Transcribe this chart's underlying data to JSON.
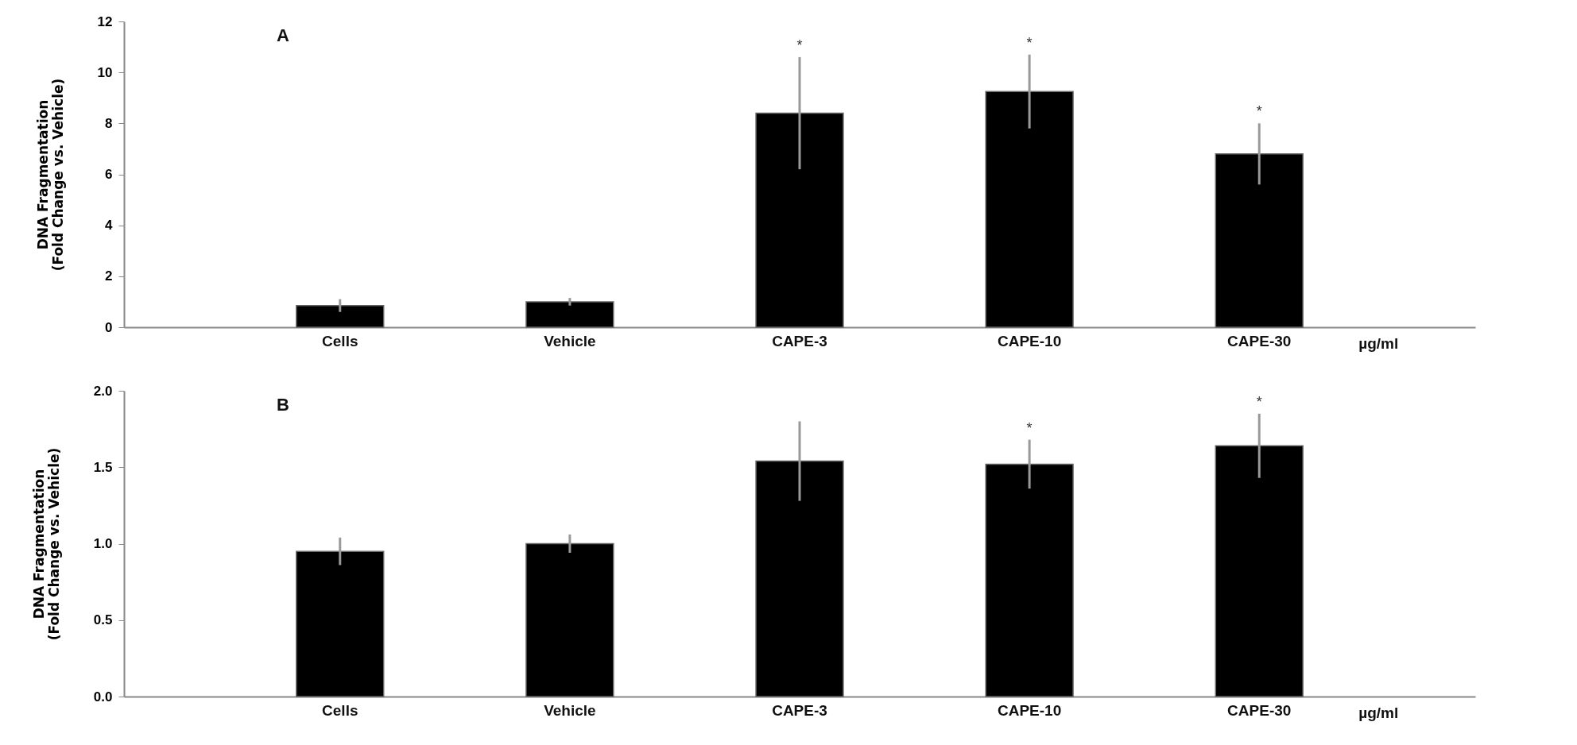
{
  "chart_data": [
    {
      "type": "bar",
      "title": "A",
      "ylabel": "DNA Fragmentation\n(Fold Change vs. Vehicle)",
      "categories": [
        "Cells",
        "Vehicle",
        "CAPE-3",
        "CAPE-10",
        "CAPE-30"
      ],
      "series": [
        {
          "color": "#000000",
          "values": [
            0.85,
            1.0,
            8.4,
            9.25,
            6.8
          ],
          "errors": [
            0.25,
            0.15,
            2.2,
            1.45,
            1.2
          ]
        }
      ],
      "ylim": [
        0,
        12
      ],
      "yticks": [
        0,
        2,
        4,
        6,
        8,
        10,
        12
      ],
      "grid": false,
      "annotations": [
        "µg/ml",
        {
          "text": "*",
          "x": "CAPE-3",
          "y": 10.6
        },
        {
          "text": "*",
          "x": "CAPE-10",
          "y": 10.7
        },
        {
          "text": "*",
          "x": "CAPE-30",
          "y": 8.0
        }
      ]
    },
    {
      "type": "bar",
      "title": "B",
      "ylabel": "DNA Fragmentation\n(Fold Change vs. Vehicle)",
      "categories": [
        "Cells",
        "Vehicle",
        "CAPE-3",
        "CAPE-10",
        "CAPE-30"
      ],
      "series": [
        {
          "color": "#000000",
          "values": [
            0.95,
            1.0,
            1.54,
            1.52,
            1.64
          ],
          "errors": [
            0.09,
            0.06,
            0.26,
            0.16,
            0.21
          ]
        }
      ],
      "ylim": [
        0,
        2
      ],
      "yticks": [
        {
          "value": 0,
          "label": "0.0"
        },
        0.5,
        {
          "value": 1,
          "label": "1.0"
        },
        1.5,
        {
          "value": 2,
          "label": "2.0"
        }
      ],
      "grid": false,
      "annotations": [
        "µg/ml",
        {
          "text": "*",
          "x": "CAPE-10",
          "y": 1.68
        },
        {
          "text": "*",
          "x": "CAPE-30",
          "y": 1.85
        }
      ]
    }
  ]
}
